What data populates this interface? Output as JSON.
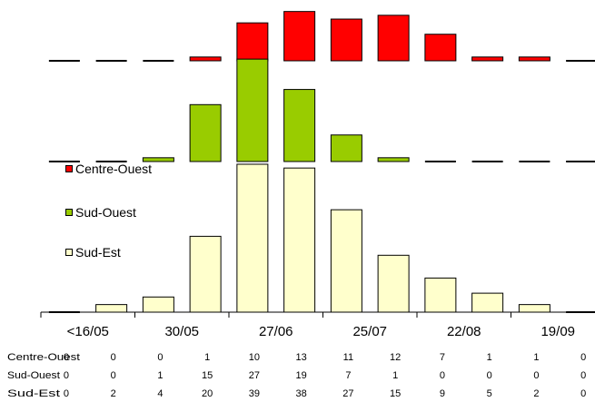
{
  "chart_data": {
    "type": "bar",
    "title": "",
    "xlabel": "",
    "ylabel": "",
    "x_tick_labels": [
      "<16/05",
      "30/05",
      "27/06",
      "25/07",
      "22/08",
      "19/09"
    ],
    "legend": [
      "Centre-Ouest",
      "Sud-Ouest",
      "Sud-Est"
    ],
    "legend_placement": "left",
    "series": [
      {
        "name": "Centre-Ouest",
        "color": "#ff0000",
        "values": [
          0,
          0,
          0,
          1,
          10,
          13,
          11,
          12,
          7,
          1,
          1,
          0
        ]
      },
      {
        "name": "Sud-Ouest",
        "color": "#99cc00",
        "values": [
          0,
          0,
          1,
          15,
          27,
          19,
          7,
          1,
          0,
          0,
          0,
          0
        ]
      },
      {
        "name": "Sud-Est",
        "color": "#ffffcc",
        "values": [
          0,
          2,
          4,
          20,
          39,
          38,
          27,
          15,
          9,
          5,
          2,
          0
        ]
      }
    ],
    "grid": false
  }
}
